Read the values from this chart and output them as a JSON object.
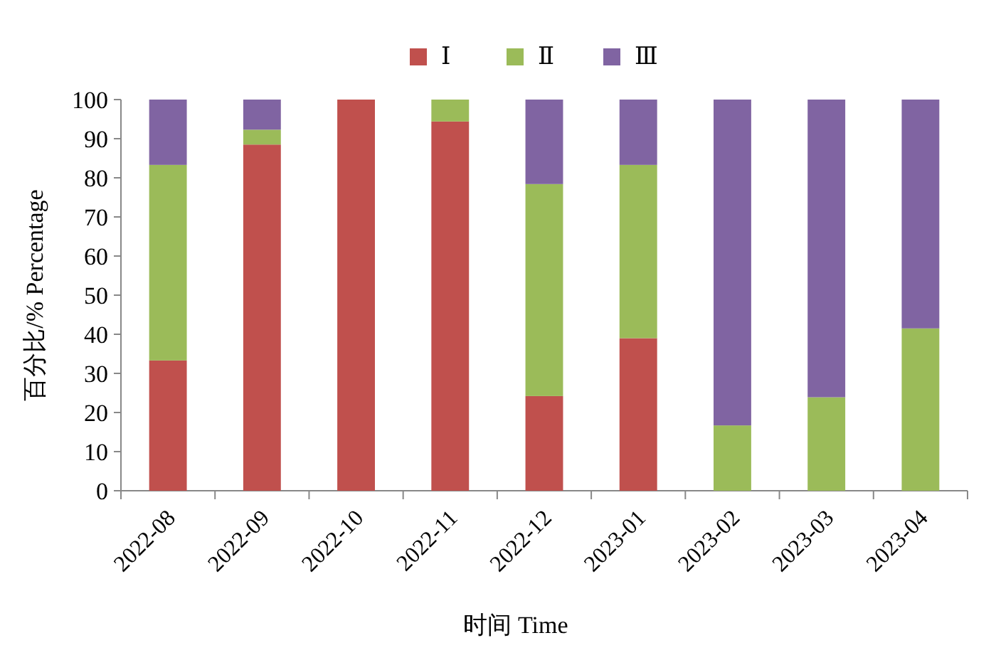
{
  "chart_data": {
    "type": "bar",
    "stacked": true,
    "legend": "top",
    "xlabel": "时间 Time",
    "ylabel": "百分比/% Percentage",
    "categories": [
      "2022-08",
      "2022-09",
      "2022-10",
      "2022-11",
      "2022-12",
      "2023-01",
      "2023-02",
      "2023-03",
      "2023-04"
    ],
    "ylim": [
      0,
      100
    ],
    "yticks": [
      0,
      10,
      20,
      30,
      40,
      50,
      60,
      70,
      80,
      90,
      100
    ],
    "series": [
      {
        "name": "Ⅰ",
        "color": "#c0504d",
        "values": [
          33.3,
          88.5,
          100,
          94.4,
          24.2,
          39,
          0,
          0,
          0
        ]
      },
      {
        "name": "Ⅱ",
        "color": "#9bbb59",
        "values": [
          50,
          3.8,
          0,
          5.6,
          54.2,
          44.3,
          16.7,
          23.9,
          41.5
        ]
      },
      {
        "name": "Ⅲ",
        "color": "#8064a2",
        "values": [
          16.7,
          7.7,
          0,
          0,
          21.6,
          16.7,
          83.3,
          76.1,
          58.5
        ]
      }
    ]
  }
}
